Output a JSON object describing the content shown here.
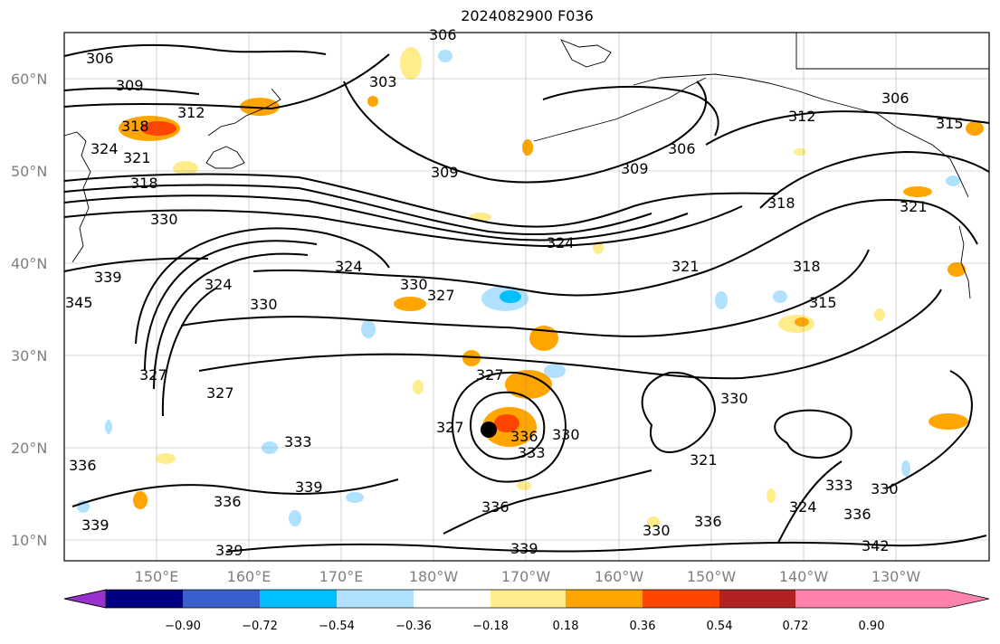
{
  "title": "2024082900 F036",
  "lat_labels": [
    "60°N",
    "50°N",
    "40°N",
    "30°N",
    "20°N",
    "10°N"
  ],
  "lon_labels": [
    "150°E",
    "160°E",
    "170°E",
    "180°W",
    "170°W",
    "160°W",
    "150°W",
    "140°W",
    "130°W"
  ],
  "colorbar": {
    "colors": [
      "#9932cc",
      "#000080",
      "#3a5fcd",
      "#00bfff",
      "#b0e2ff",
      "#ffffff",
      "#ffec8b",
      "#ffa500",
      "#ff4500",
      "#b22222",
      "#ff82ab"
    ],
    "tick_labels": [
      "−0.90",
      "−0.72",
      "−0.54",
      "−0.36",
      "−0.18",
      "0.18",
      "0.36",
      "0.54",
      "0.72",
      "0.90"
    ]
  },
  "contour_labels": [
    "306",
    "309",
    "303",
    "312",
    "318",
    "324",
    "321",
    "306",
    "306",
    "312",
    "315",
    "309",
    "309",
    "306",
    "318",
    "330",
    "318",
    "324",
    "324",
    "321",
    "321",
    "339",
    "324",
    "330",
    "327",
    "330",
    "345",
    "318",
    "315",
    "327",
    "327",
    "327",
    "330",
    "336",
    "333",
    "327",
    "333",
    "330",
    "321",
    "339",
    "336",
    "336",
    "336",
    "339",
    "330",
    "339",
    "333",
    "324",
    "336",
    "330",
    "336",
    "339",
    "342"
  ],
  "marker": "storm-center"
}
